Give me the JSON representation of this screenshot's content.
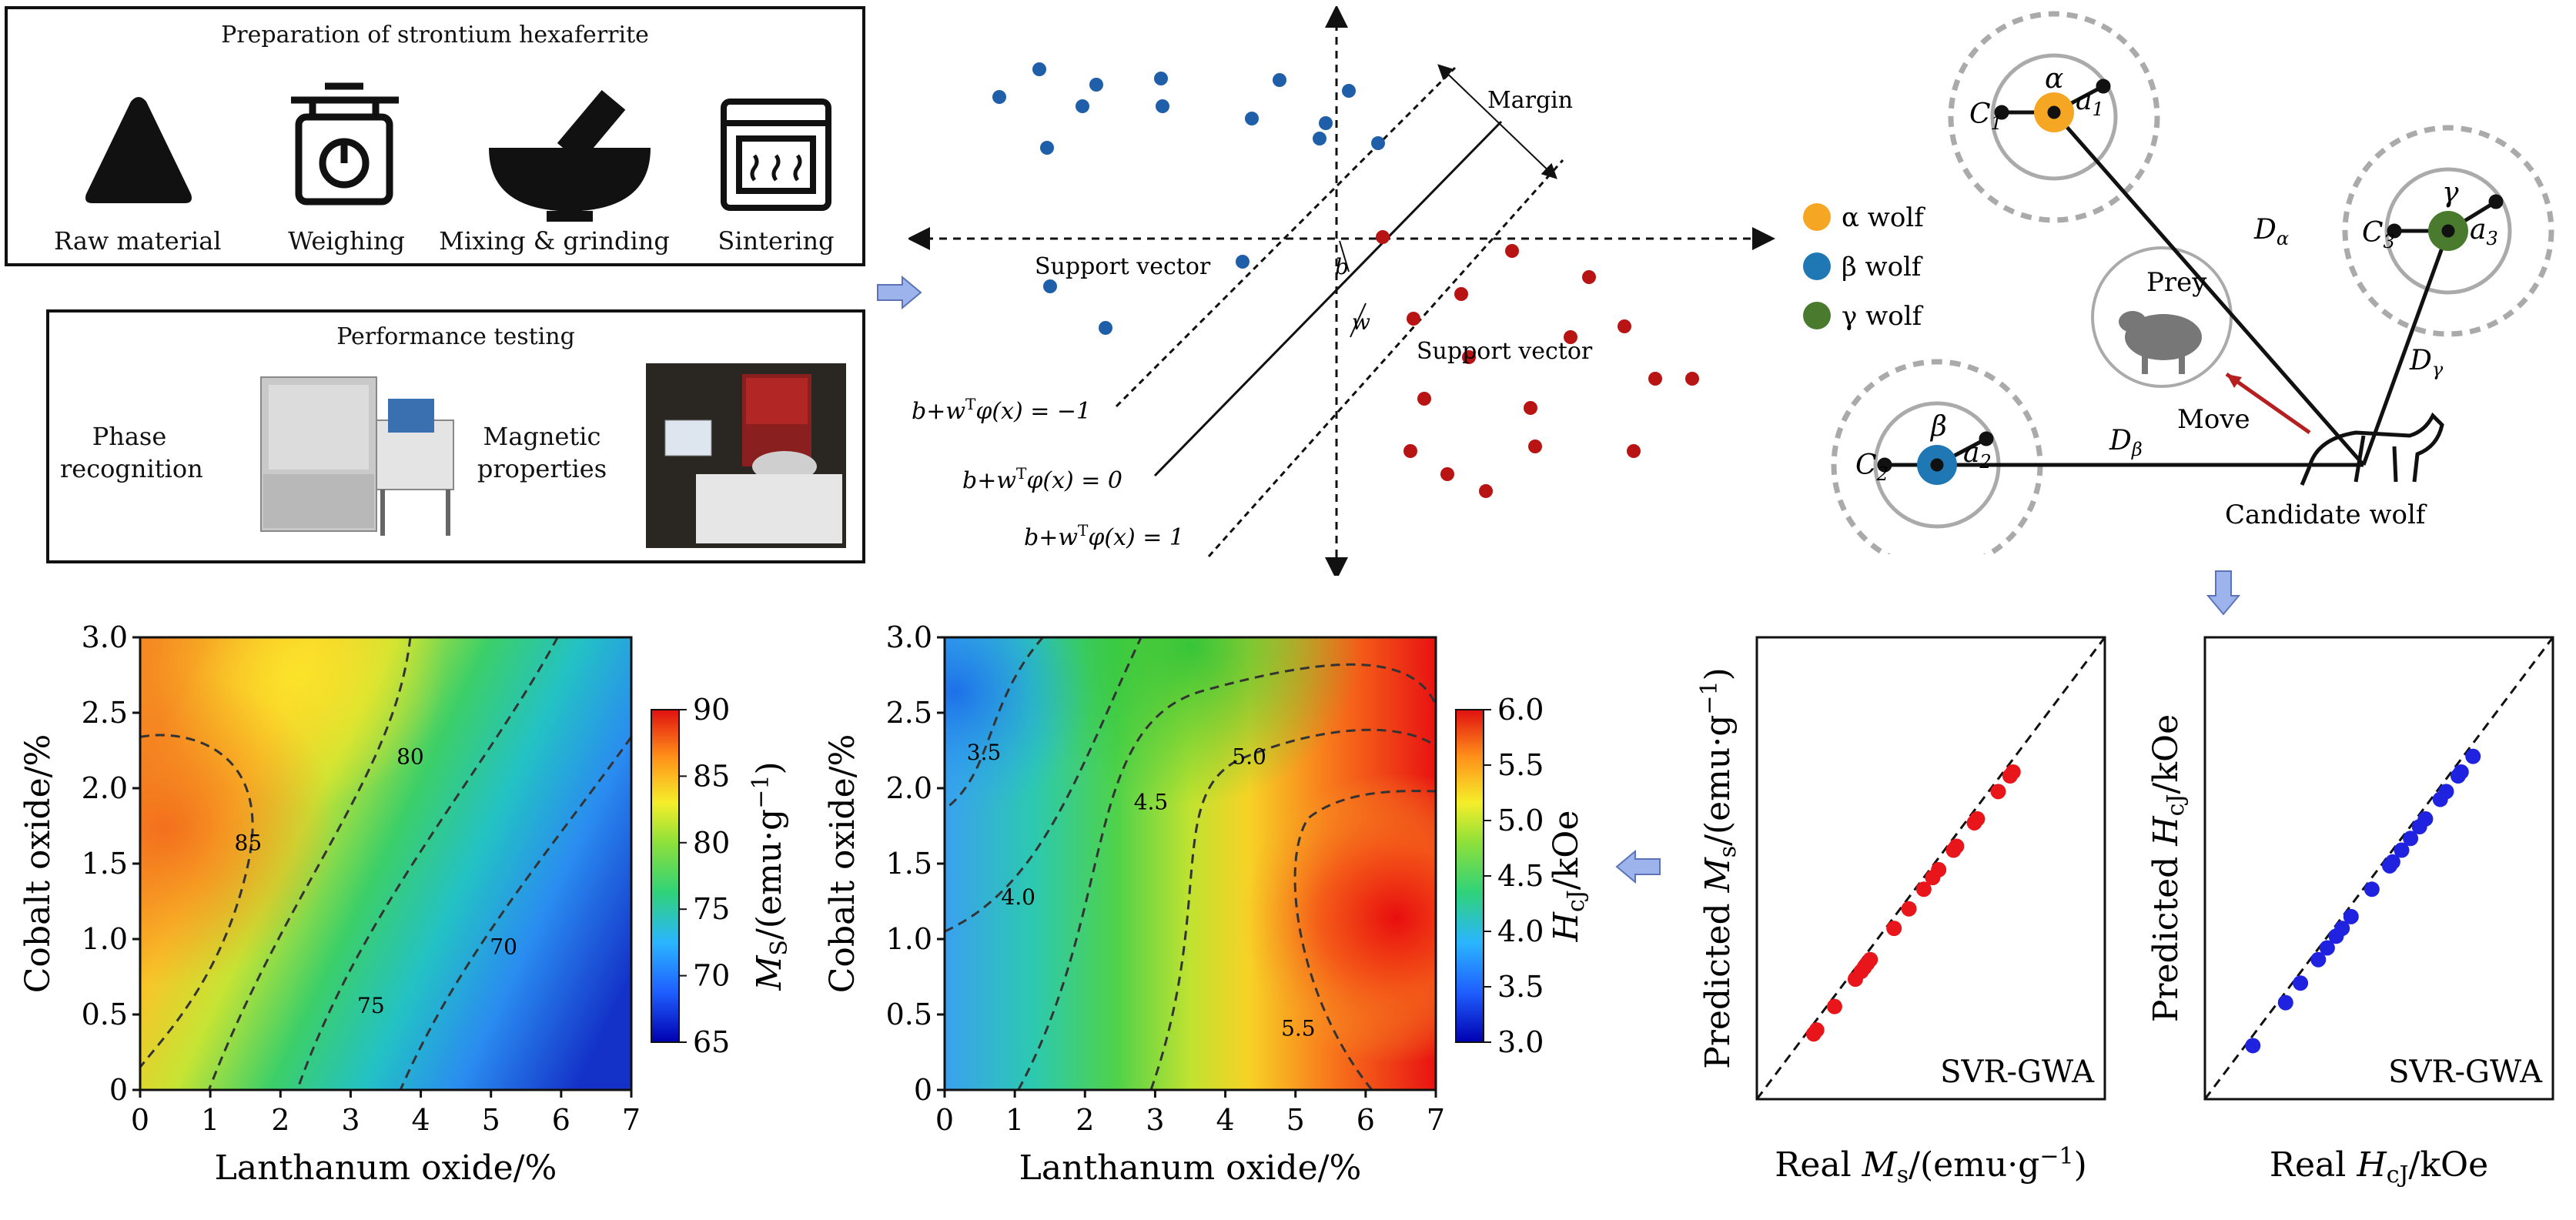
{
  "prep": {
    "title": "Preparation of strontium hexaferrite",
    "steps": [
      "Raw material",
      "Weighing",
      "Mixing & grinding",
      "Sintering"
    ]
  },
  "perf": {
    "title": "Performance testing",
    "left_label": "Phase\nrecognition",
    "right_label": "Magnetic\nproperties"
  },
  "svm": {
    "margin": "Margin",
    "support_vector_1": "Support vector",
    "support_vector_2": "Support vector",
    "b": "b",
    "w": "w",
    "eq_minus": "b+w",
    "eq_sup": "T",
    "eq_phi": "φ(x) = −1",
    "eq_zero_phi": "φ(x) = 0",
    "eq_one_phi": "φ(x) = 1"
  },
  "gwo": {
    "legend": [
      "α wolf",
      "β wolf",
      "γ wolf"
    ],
    "legend_colors": [
      "#f5a623",
      "#1f77b4",
      "#4a7a2e"
    ],
    "prey": "Prey",
    "move": "Move",
    "candidate": "Candidate wolf",
    "c1": "C",
    "c1_sub": "1",
    "c2": "C",
    "c2_sub": "2",
    "c3": "C",
    "c3_sub": "3",
    "a1": "a",
    "a1_sub": "1",
    "a2": "a",
    "a2_sub": "2",
    "a3": "a",
    "a3_sub": "3",
    "alpha": "α",
    "beta": "β",
    "gamma": "γ",
    "d_alpha": "D",
    "d_alpha_sub": "α",
    "d_beta": "D",
    "d_beta_sub": "β",
    "d_gamma": "D",
    "d_gamma_sub": "γ"
  },
  "contour_ms": {
    "xlabel": "Lanthanum oxide/%",
    "ylabel": "Cobalt oxide/%",
    "cbar_label": "MS/(emu·g−1)",
    "xticks": [
      "0",
      "1",
      "2",
      "3",
      "4",
      "5",
      "6",
      "7"
    ],
    "yticks": [
      "0",
      "0.5",
      "1.0",
      "1.5",
      "2.0",
      "2.5",
      "3.0"
    ],
    "cbticks": [
      "65",
      "70",
      "75",
      "80",
      "85",
      "90"
    ],
    "contour_labels": [
      "85",
      "80",
      "75",
      "70"
    ]
  },
  "contour_hc": {
    "xlabel": "Lanthanum oxide/%",
    "ylabel": "Cobalt oxide/%",
    "cbar_label": "HcJ/kOe",
    "xticks": [
      "0",
      "1",
      "2",
      "3",
      "4",
      "5",
      "6",
      "7"
    ],
    "yticks": [
      "0",
      "0.5",
      "1.0",
      "1.5",
      "2.0",
      "2.5",
      "3.0"
    ],
    "cbticks": [
      "3.0",
      "3.5",
      "4.0",
      "4.5",
      "5.0",
      "5.5",
      "6.0"
    ],
    "contour_labels": [
      "3.5",
      "4.0",
      "4.5",
      "5.0",
      "5.5"
    ]
  },
  "scatter_ms": {
    "xlabel": "Real Ms/(emu·g−1)",
    "ylabel": "Predicted Ms/(emu·g−1)",
    "tag": "SVR-GWA"
  },
  "scatter_hc": {
    "xlabel": "Real HcJ/kOe",
    "ylabel": "Predicted HcJ/kOe",
    "tag": "SVR-GWA"
  },
  "chart_data": [
    {
      "type": "heatmap",
      "xlabel": "Lanthanum oxide/%",
      "ylabel": "Cobalt oxide/%",
      "colorbar": "MS/(emu·g−1)",
      "xlim": [
        0,
        7
      ],
      "ylim": [
        0,
        3.0
      ],
      "clim": [
        65,
        90
      ],
      "contour_levels": [
        85,
        80,
        75,
        70
      ]
    },
    {
      "type": "heatmap",
      "xlabel": "Lanthanum oxide/%",
      "ylabel": "Cobalt oxide/%",
      "colorbar": "HcJ/kOe",
      "xlim": [
        0,
        7
      ],
      "ylim": [
        0,
        3.0
      ],
      "clim": [
        3.0,
        6.0
      ],
      "contour_levels": [
        3.5,
        4.0,
        4.5,
        5.0,
        5.5
      ]
    },
    {
      "type": "scatter",
      "xlabel": "Real Ms/(emu·g−1)",
      "ylabel": "Predicted Ms/(emu·g−1)",
      "color": "#e8161b",
      "x": [
        0.08,
        0.09,
        0.15,
        0.22,
        0.24,
        0.25,
        0.26,
        0.27,
        0.35,
        0.4,
        0.45,
        0.48,
        0.5,
        0.55,
        0.56,
        0.62,
        0.63,
        0.7,
        0.74,
        0.75
      ],
      "y": [
        0.08,
        0.09,
        0.15,
        0.22,
        0.24,
        0.25,
        0.26,
        0.27,
        0.35,
        0.4,
        0.45,
        0.48,
        0.5,
        0.55,
        0.56,
        0.62,
        0.63,
        0.7,
        0.74,
        0.75
      ]
    },
    {
      "type": "scatter",
      "xlabel": "Real HcJ/kOe",
      "ylabel": "Predicted HcJ/kOe",
      "color": "#1f23e0",
      "x": [
        0.05,
        0.16,
        0.21,
        0.27,
        0.3,
        0.33,
        0.35,
        0.38,
        0.45,
        0.51,
        0.52,
        0.55,
        0.58,
        0.61,
        0.63,
        0.68,
        0.7,
        0.74,
        0.75,
        0.79
      ],
      "y": [
        0.05,
        0.16,
        0.21,
        0.27,
        0.3,
        0.33,
        0.35,
        0.38,
        0.45,
        0.51,
        0.52,
        0.55,
        0.58,
        0.61,
        0.63,
        0.68,
        0.7,
        0.74,
        0.75,
        0.79
      ]
    }
  ]
}
